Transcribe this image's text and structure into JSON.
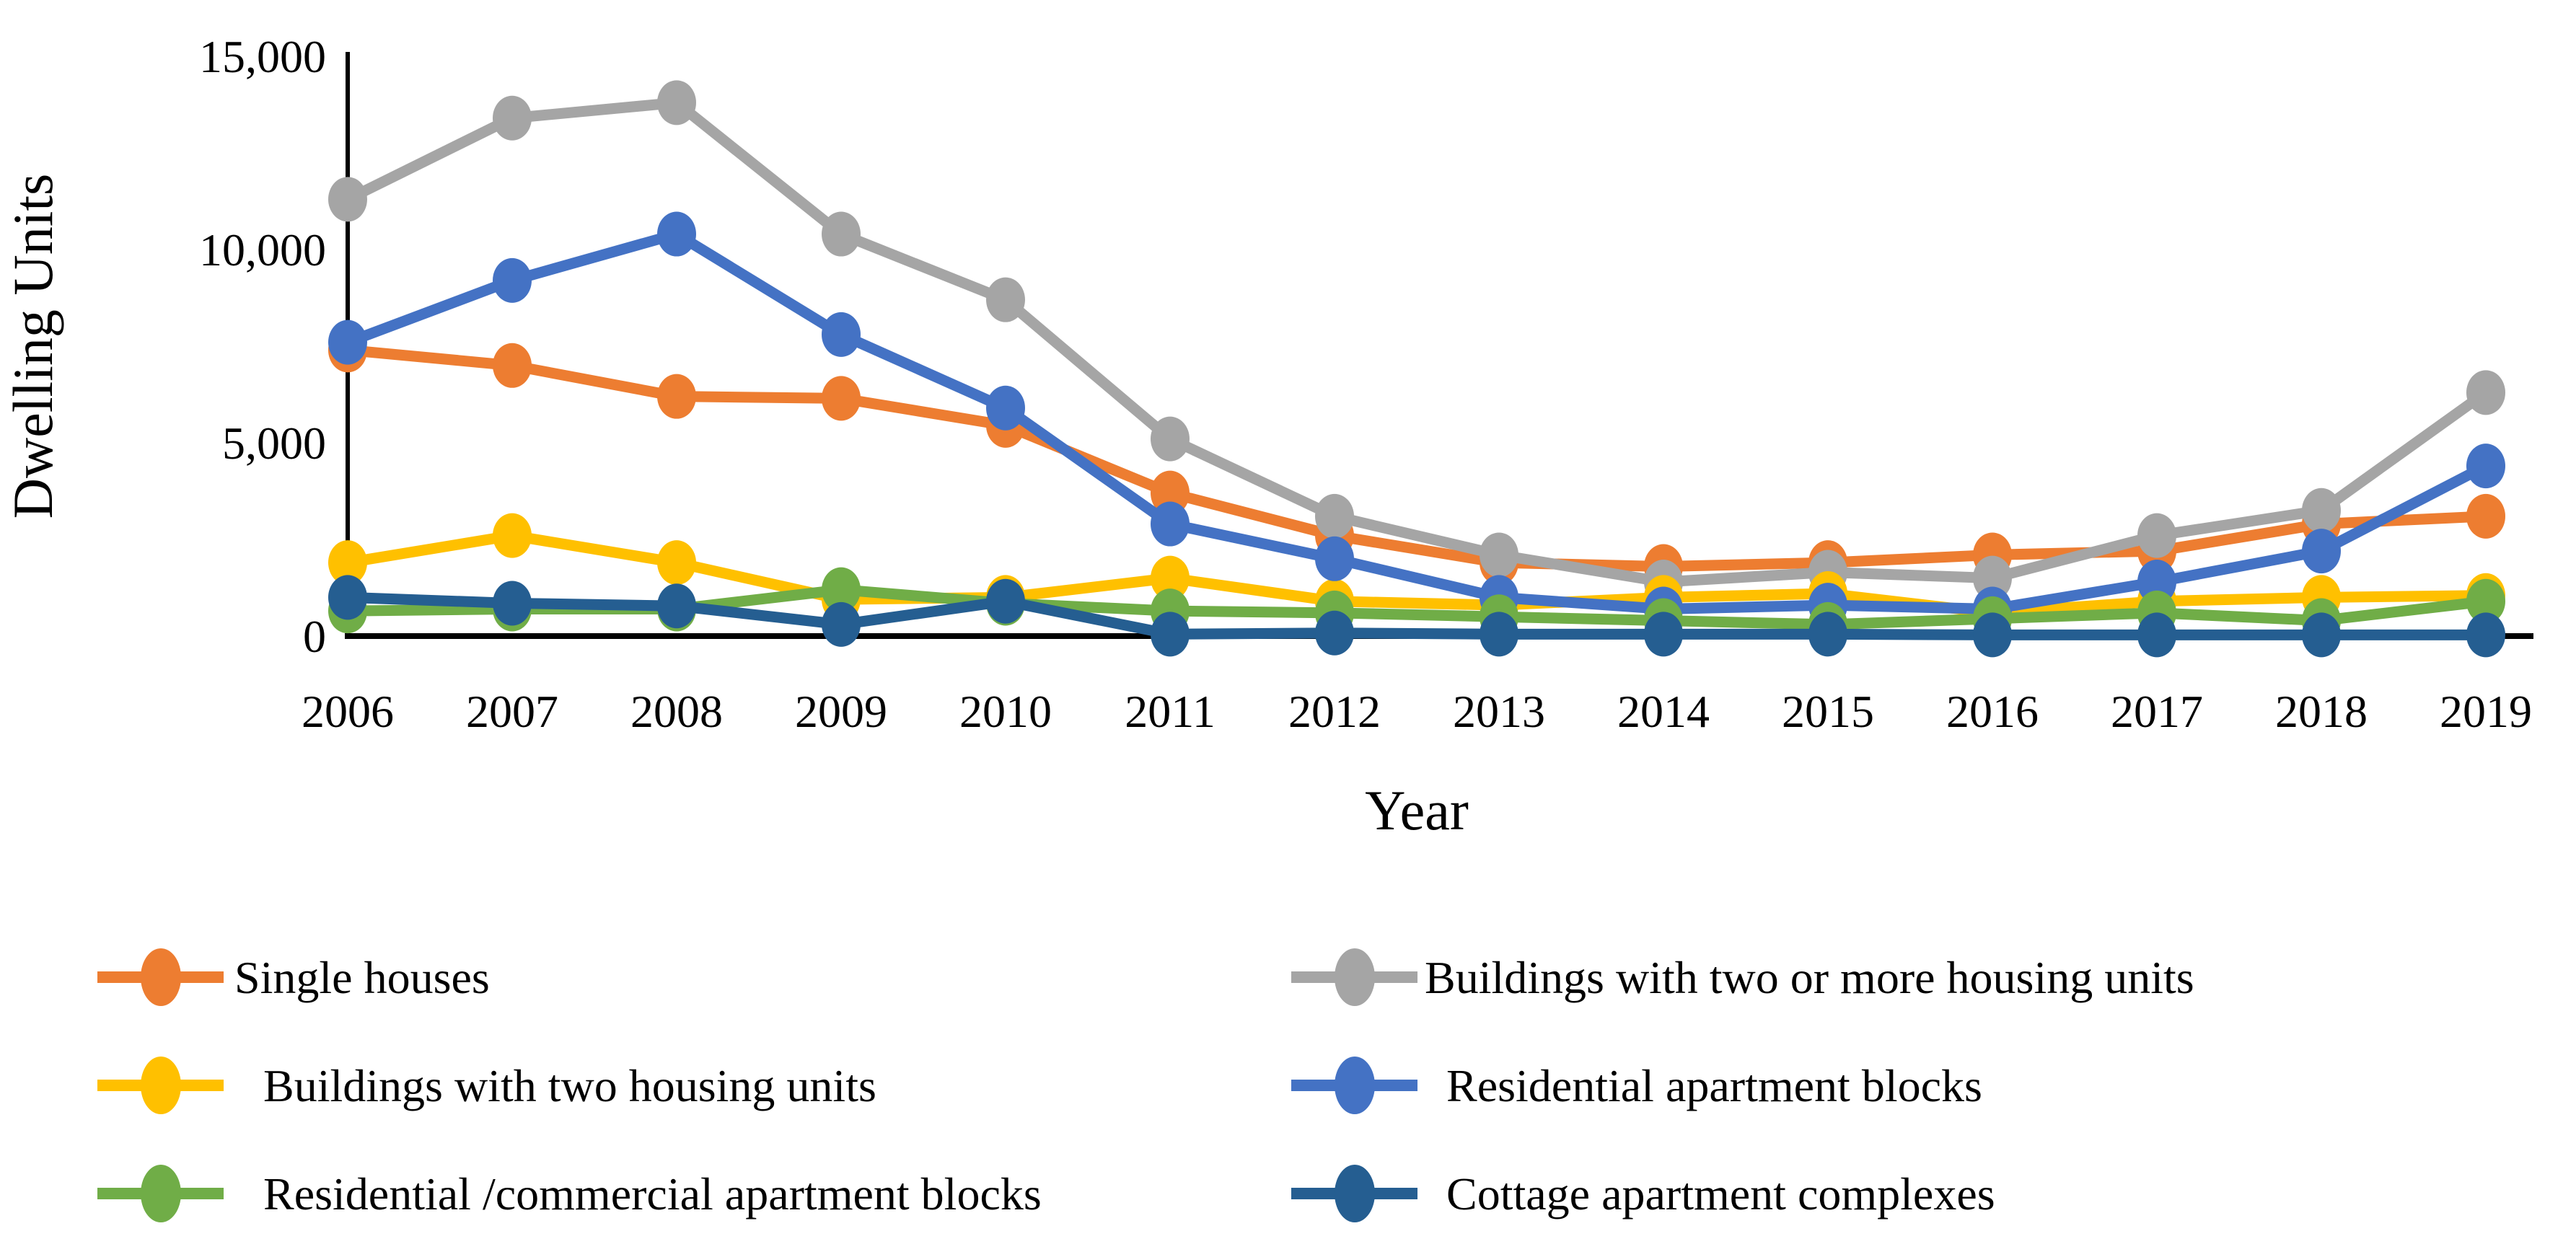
{
  "figure": {
    "background": "#FFFFFF",
    "text_color": "#000000"
  },
  "chart_data": {
    "type": "line",
    "title": "",
    "xlabel": "Year",
    "ylabel": "Dwelling Units",
    "categories": [
      "2006",
      "2007",
      "2008",
      "2009",
      "2010",
      "2011",
      "2012",
      "2013",
      "2014",
      "2015",
      "2016",
      "2017",
      "2018",
      "2019"
    ],
    "ylim": [
      0,
      15000
    ],
    "ytick_values": [
      15000,
      10000,
      5000,
      0
    ],
    "ytick_labels": [
      "15,000",
      "10,000",
      "5,000",
      "0"
    ],
    "grid": false,
    "marker": "circle",
    "legend_position": "bottom-two-columns",
    "series": [
      {
        "name": "Single houses",
        "color": "#ED7D31",
        "values": [
          7400,
          7000,
          6200,
          6150,
          5450,
          3700,
          2600,
          1900,
          1800,
          1900,
          2100,
          2200,
          2900,
          3100
        ]
      },
      {
        "name": "Buildings with two or more housing units",
        "color": "#A5A5A5",
        "values": [
          11300,
          13400,
          13800,
          10400,
          8700,
          5100,
          3100,
          2100,
          1400,
          1650,
          1500,
          2600,
          3250,
          6300
        ]
      },
      {
        "name": "Buildings with two housing units",
        "color": "#FFC000",
        "values": [
          1900,
          2600,
          1900,
          950,
          1000,
          1500,
          900,
          800,
          1000,
          1100,
          600,
          900,
          1000,
          1050
        ]
      },
      {
        "name": "Residential apartment blocks",
        "color": "#4472C4",
        "values": [
          7600,
          9200,
          10400,
          7800,
          5900,
          2900,
          2000,
          1000,
          700,
          800,
          700,
          1400,
          2200,
          4400
        ]
      },
      {
        "name": "Residential /commercial apartment blocks",
        "color": "#70AD47",
        "values": [
          650,
          700,
          700,
          1200,
          850,
          650,
          600,
          500,
          400,
          300,
          450,
          600,
          400,
          900
        ]
      },
      {
        "name": "Cottage apartment complexes",
        "color": "#255E91",
        "values": [
          1000,
          850,
          780,
          300,
          900,
          50,
          80,
          50,
          50,
          50,
          30,
          30,
          30,
          30
        ]
      }
    ]
  }
}
